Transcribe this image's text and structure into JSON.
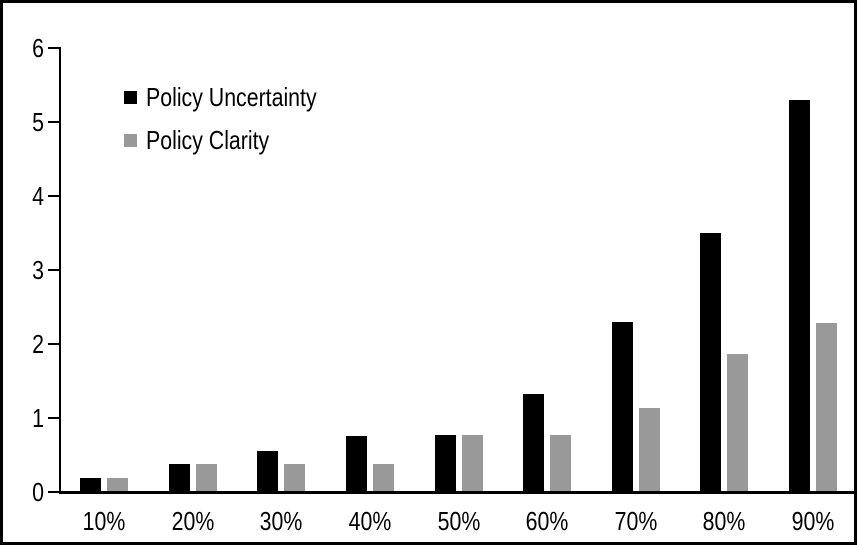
{
  "chart_data": {
    "type": "bar",
    "title": "",
    "xlabel": "",
    "ylabel": "",
    "categories": [
      "10%",
      "20%",
      "30%",
      "40%",
      "50%",
      "60%",
      "70%",
      "80%",
      "90%"
    ],
    "series": [
      {
        "name": "Policy Uncertainty",
        "color": "#000000",
        "values": [
          0.19,
          0.38,
          0.56,
          0.76,
          0.77,
          1.32,
          2.3,
          3.5,
          5.3
        ]
      },
      {
        "name": "Policy Clarity",
        "color": "#999999",
        "values": [
          0.19,
          0.38,
          0.38,
          0.38,
          0.77,
          0.77,
          1.14,
          1.87,
          2.28
        ]
      }
    ],
    "ylim": [
      0,
      6
    ],
    "yticks": [
      0,
      1,
      2,
      3,
      4,
      5,
      6
    ],
    "grid": false,
    "legend_position": "top-left-inside",
    "background_color": "#ffffff",
    "border_color": "#000000"
  }
}
